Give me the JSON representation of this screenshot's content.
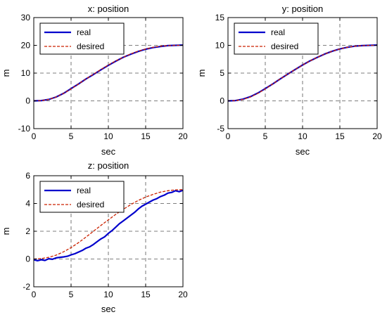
{
  "chart_data": [
    {
      "type": "line",
      "title": "x: position",
      "xlabel": "sec",
      "ylabel": "m",
      "xlim": [
        0,
        20
      ],
      "ylim": [
        -10,
        30
      ],
      "xticks": [
        0,
        5,
        10,
        15,
        20
      ],
      "yticks": [
        -10,
        0,
        10,
        20,
        30
      ],
      "grid": true,
      "legend": "top-left",
      "series": [
        {
          "name": "real",
          "color": "#0000cc",
          "style": "solid",
          "x": [
            0,
            1,
            2,
            3,
            4,
            5,
            6,
            7,
            8,
            9,
            10,
            11,
            12,
            13,
            14,
            15,
            16,
            17,
            18,
            19,
            20
          ],
          "y": [
            0,
            0.1,
            0.5,
            1.4,
            2.7,
            4.4,
            6.1,
            7.9,
            9.5,
            11.2,
            12.8,
            14.3,
            15.7,
            16.8,
            17.8,
            18.6,
            19.2,
            19.6,
            19.9,
            20,
            20.1
          ]
        },
        {
          "name": "desired",
          "color": "#cc2200",
          "style": "dashed",
          "x": [
            0,
            1,
            2,
            3,
            4,
            5,
            6,
            7,
            8,
            9,
            10,
            11,
            12,
            13,
            14,
            15,
            16,
            17,
            18,
            19,
            20
          ],
          "y": [
            0,
            0.1,
            0.5,
            1.4,
            2.7,
            4.3,
            6.1,
            7.9,
            9.6,
            11.3,
            12.9,
            14.4,
            15.7,
            16.9,
            17.9,
            18.7,
            19.3,
            19.7,
            19.9,
            20,
            20
          ]
        }
      ]
    },
    {
      "type": "line",
      "title": "y: position",
      "xlabel": "sec",
      "ylabel": "m",
      "xlim": [
        0,
        20
      ],
      "ylim": [
        -5,
        15
      ],
      "xticks": [
        0,
        5,
        10,
        15,
        20
      ],
      "yticks": [
        -5,
        0,
        5,
        10,
        15
      ],
      "grid": true,
      "legend": "top-left",
      "series": [
        {
          "name": "real",
          "color": "#0000cc",
          "style": "solid",
          "x": [
            0,
            1,
            2,
            3,
            4,
            5,
            6,
            7,
            8,
            9,
            10,
            11,
            12,
            13,
            14,
            15,
            16,
            17,
            18,
            19,
            20
          ],
          "y": [
            0,
            0.05,
            0.3,
            0.75,
            1.4,
            2.2,
            3.05,
            3.95,
            4.8,
            5.65,
            6.45,
            7.2,
            7.85,
            8.45,
            8.95,
            9.35,
            9.65,
            9.85,
            9.95,
            10,
            10.05
          ]
        },
        {
          "name": "desired",
          "color": "#cc2200",
          "style": "dashed",
          "x": [
            0,
            1,
            2,
            3,
            4,
            5,
            6,
            7,
            8,
            9,
            10,
            11,
            12,
            13,
            14,
            15,
            16,
            17,
            18,
            19,
            20
          ],
          "y": [
            0,
            0.05,
            0.25,
            0.7,
            1.35,
            2.15,
            3.05,
            3.95,
            4.8,
            5.65,
            6.45,
            7.2,
            7.85,
            8.45,
            8.95,
            9.35,
            9.65,
            9.85,
            9.95,
            10,
            10
          ]
        }
      ]
    },
    {
      "type": "line",
      "title": "z: position",
      "xlabel": "sec",
      "ylabel": "m",
      "xlim": [
        0,
        20
      ],
      "ylim": [
        -2,
        6
      ],
      "xticks": [
        0,
        5,
        10,
        15,
        20
      ],
      "yticks": [
        -2,
        0,
        2,
        4,
        6
      ],
      "grid": true,
      "legend": "top-left",
      "series": [
        {
          "name": "real",
          "color": "#0000cc",
          "style": "solid",
          "x": [
            0,
            0.5,
            1,
            1.5,
            2,
            2.5,
            3,
            3.5,
            4,
            4.5,
            5,
            5.5,
            6,
            6.5,
            7,
            7.5,
            8,
            8.5,
            9,
            9.5,
            10,
            10.5,
            11,
            11.5,
            12,
            12.5,
            13,
            13.5,
            14,
            14.5,
            15,
            15.5,
            16,
            16.5,
            17,
            17.5,
            18,
            18.5,
            19,
            19.5,
            20
          ],
          "y": [
            -0.05,
            -0.12,
            -0.05,
            -0.1,
            0.02,
            -0.02,
            0.08,
            0.12,
            0.15,
            0.2,
            0.3,
            0.38,
            0.5,
            0.62,
            0.78,
            0.88,
            1.05,
            1.25,
            1.45,
            1.6,
            1.85,
            2.05,
            2.3,
            2.55,
            2.75,
            2.95,
            3.15,
            3.35,
            3.6,
            3.8,
            3.95,
            4.1,
            4.25,
            4.35,
            4.5,
            4.6,
            4.75,
            4.8,
            4.92,
            4.85,
            4.95
          ]
        },
        {
          "name": "desired",
          "color": "#cc2200",
          "style": "dashed",
          "x": [
            0,
            1,
            2,
            3,
            4,
            5,
            6,
            7,
            8,
            9,
            10,
            11,
            12,
            13,
            14,
            15,
            16,
            17,
            18,
            19,
            20
          ],
          "y": [
            0,
            0.03,
            0.12,
            0.28,
            0.52,
            0.82,
            1.18,
            1.58,
            2.0,
            2.42,
            2.82,
            3.22,
            3.58,
            3.92,
            4.22,
            4.46,
            4.66,
            4.82,
            4.92,
            4.98,
            5.0
          ]
        }
      ]
    }
  ]
}
